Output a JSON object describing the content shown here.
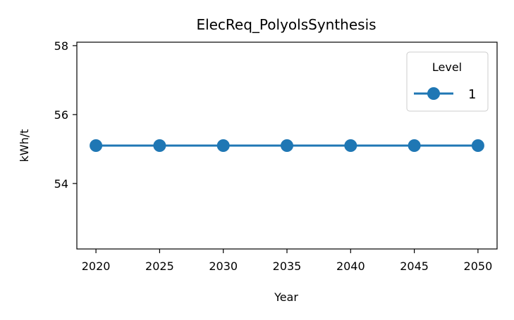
{
  "chart_data": {
    "type": "line",
    "title": "ElecReq_PolyolsSynthesis",
    "xlabel": "Year",
    "ylabel": "kWh/t",
    "x": [
      2020,
      2025,
      2030,
      2035,
      2040,
      2045,
      2050
    ],
    "xticks": [
      "2020",
      "2025",
      "2030",
      "2035",
      "2040",
      "2045",
      "2050"
    ],
    "yticks": [
      "54",
      "56",
      "58"
    ],
    "xlim": [
      2018.5,
      2051.5
    ],
    "ylim": [
      52.1,
      58.1
    ],
    "series": [
      {
        "name": "1",
        "color": "#1f77b4",
        "values": [
          55.1,
          55.1,
          55.1,
          55.1,
          55.1,
          55.1,
          55.1
        ]
      }
    ],
    "legend": {
      "title": "Level",
      "placement": "upper right"
    },
    "grid": false
  }
}
